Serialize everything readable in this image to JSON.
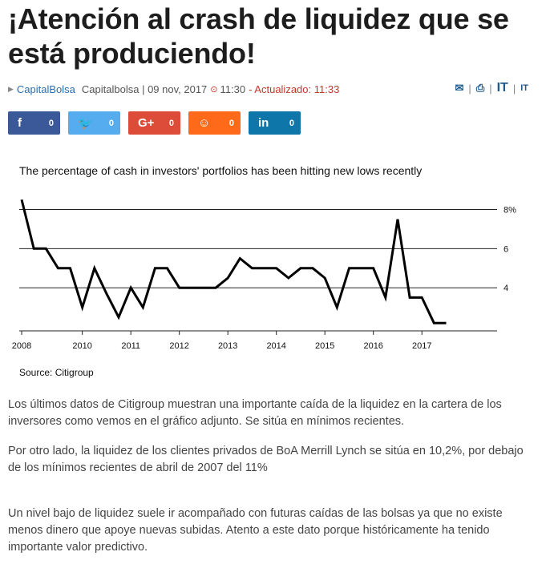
{
  "article": {
    "title": "¡Atención al crash de liquidez que se está produciendo!",
    "source_link": "CapitalBolsa",
    "byline": "Capitalbolsa | 09 nov, 2017",
    "time": "11:30",
    "updated": "- Actualizado: 11:33",
    "paragraphs": [
      "Los últimos datos de Citigroup muestran una importante caída de la liquidez en la cartera de los inversores como vemos en el gráfico adjunto. Se sitúa en mínimos recientes.",
      "Por otro lado, la liquidez de los clientes privados de BoA Merrill Lynch se sitúa en 10,2%, por debajo de los mínimos recientes de abril de 2007 del 11%",
      "Un nivel bajo de liquidez suele ir acompañado con futuras caídas de las bolsas ya que no existe menos dinero que apoye nuevas subidas. Atento a este dato porque históricamente ha tenido importante valor predictivo."
    ]
  },
  "tools": {
    "font_large": "IT",
    "font_small": "IT"
  },
  "share": [
    {
      "network": "facebook",
      "glyph": "f",
      "count": "0",
      "color": "#3b5998"
    },
    {
      "network": "twitter",
      "glyph": "🐦",
      "count": "0",
      "color": "#55acee"
    },
    {
      "network": "google-plus",
      "glyph": "G+",
      "count": "0",
      "color": "#dd4b39"
    },
    {
      "network": "meneame",
      "glyph": "☺",
      "count": "0",
      "color": "#ff6a1a"
    },
    {
      "network": "linkedin",
      "glyph": "in",
      "count": "0",
      "color": "#0e76a8"
    }
  ],
  "chart_data": {
    "type": "line",
    "title": "The percentage of cash in investors' portfolios has been hitting new lows recently",
    "source": "Source: Citigroup",
    "x": [
      2008.0,
      2008.25,
      2008.5,
      2008.75,
      2009.0,
      2009.25,
      2009.5,
      2009.75,
      2010.0,
      2010.25,
      2010.5,
      2010.75,
      2011.0,
      2011.25,
      2011.5,
      2011.75,
      2012.0,
      2012.25,
      2012.5,
      2012.75,
      2013.0,
      2013.25,
      2013.5,
      2013.75,
      2014.0,
      2014.25,
      2014.5,
      2014.75,
      2015.0,
      2015.25,
      2015.5,
      2015.75,
      2016.0,
      2016.25,
      2016.5,
      2016.75,
      2017.0,
      2017.25,
      2017.5
    ],
    "values": [
      8.5,
      6.0,
      6.0,
      5.0,
      5.0,
      3.0,
      5.0,
      3.7,
      2.5,
      4.0,
      3.0,
      5.0,
      5.0,
      4.0,
      4.0,
      4.0,
      4.0,
      4.5,
      5.5,
      5.0,
      5.0,
      5.0,
      4.5,
      5.0,
      5.0,
      4.5,
      3.0,
      5.0,
      5.0,
      5.0,
      3.5,
      7.5,
      3.5,
      3.5,
      2.2,
      2.2,
      null,
      null,
      null
    ],
    "x_ticks": [
      "2008",
      "2010",
      "2011",
      "2012",
      "2013",
      "2014",
      "2015",
      "2016",
      "2017"
    ],
    "y_ticks": [
      "8%",
      "6",
      "4"
    ],
    "ylim": [
      1.8,
      9
    ],
    "grid": true
  }
}
